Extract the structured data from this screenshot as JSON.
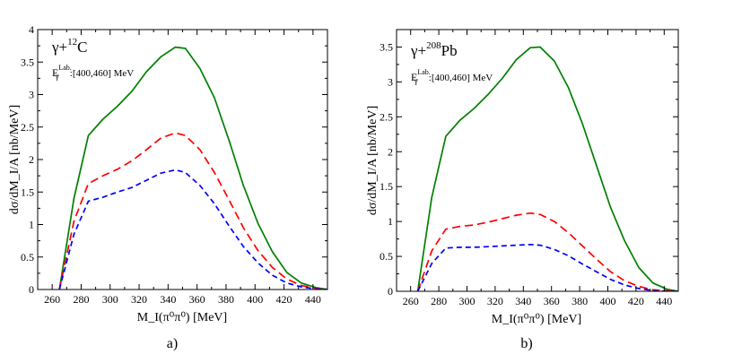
{
  "chart_data": [
    {
      "type": "line",
      "caption": "a)",
      "title_prefix": "γ+",
      "title_mass": "12",
      "title_element": "C",
      "energy_label": "E",
      "energy_sub": "γ",
      "energy_sup": "Lab.",
      "energy_range": ":[400,460] MeV",
      "xlabel": "M_I(π⁰π⁰) [MeV]",
      "ylabel": "dσ/dM_I/A  [nb/MeV]",
      "xlim": [
        250,
        450
      ],
      "ylim": [
        0,
        4
      ],
      "xticks": [
        260,
        280,
        300,
        320,
        340,
        360,
        380,
        400,
        420,
        440
      ],
      "yticks": [
        0,
        0.5,
        1,
        1.5,
        2,
        2.5,
        3,
        3.5,
        4
      ],
      "ytick_labels": [
        "0",
        "0.5",
        "1",
        "1.5",
        "2",
        "2.5",
        "3",
        "3.5",
        "4"
      ],
      "series": [
        {
          "name": "green solid",
          "color": "#008000",
          "dash": "solid",
          "x": [
            265,
            275,
            285,
            295,
            305,
            315,
            325,
            335,
            345,
            352,
            362,
            372,
            382,
            392,
            402,
            412,
            422,
            432,
            442,
            450
          ],
          "y": [
            0,
            1.4,
            2.37,
            2.62,
            2.82,
            3.05,
            3.35,
            3.58,
            3.73,
            3.71,
            3.4,
            2.95,
            2.3,
            1.6,
            1.02,
            0.58,
            0.26,
            0.1,
            0.03,
            0
          ]
        },
        {
          "name": "red long-dashed",
          "color": "#ff0000",
          "dash": "long",
          "x": [
            265,
            275,
            285,
            295,
            305,
            315,
            325,
            335,
            345,
            352,
            362,
            372,
            382,
            392,
            402,
            412,
            422,
            432,
            442,
            450
          ],
          "y": [
            0,
            1.05,
            1.63,
            1.75,
            1.85,
            1.98,
            2.15,
            2.33,
            2.41,
            2.37,
            2.15,
            1.8,
            1.38,
            0.95,
            0.6,
            0.34,
            0.16,
            0.06,
            0.02,
            0
          ]
        },
        {
          "name": "blue dashed",
          "color": "#0000ff",
          "dash": "short",
          "x": [
            265,
            275,
            285,
            295,
            305,
            315,
            325,
            335,
            345,
            352,
            362,
            372,
            382,
            392,
            402,
            412,
            422,
            432,
            442,
            450
          ],
          "y": [
            0,
            0.85,
            1.36,
            1.42,
            1.5,
            1.57,
            1.68,
            1.79,
            1.84,
            1.8,
            1.6,
            1.32,
            0.98,
            0.66,
            0.41,
            0.22,
            0.1,
            0.04,
            0.01,
            0
          ]
        }
      ]
    },
    {
      "type": "line",
      "caption": "b)",
      "title_prefix": "γ+",
      "title_mass": "208",
      "title_element": "Pb",
      "energy_label": "E",
      "energy_sub": "γ",
      "energy_sup": "Lab.",
      "energy_range": ":[400,460] MeV",
      "xlabel": "M_I(π⁰π⁰) [MeV]",
      "ylabel": "dσ/dM_I/A  [nb/MeV]",
      "xlim": [
        250,
        450
      ],
      "ylim": [
        0,
        3.75
      ],
      "xticks": [
        260,
        280,
        300,
        320,
        340,
        360,
        380,
        400,
        420,
        440
      ],
      "yticks": [
        0,
        0.5,
        1,
        1.5,
        2,
        2.5,
        3,
        3.5
      ],
      "ytick_labels": [
        "0",
        "0.5",
        "1",
        "1.5",
        "2",
        "2.5",
        "3",
        "3.5"
      ],
      "series": [
        {
          "name": "green solid",
          "color": "#008000",
          "dash": "solid",
          "x": [
            265,
            275,
            285,
            295,
            305,
            315,
            325,
            335,
            345,
            352,
            362,
            372,
            382,
            392,
            402,
            412,
            422,
            432,
            442,
            450
          ],
          "y": [
            0,
            1.35,
            2.22,
            2.45,
            2.62,
            2.82,
            3.05,
            3.32,
            3.49,
            3.5,
            3.3,
            2.92,
            2.4,
            1.8,
            1.2,
            0.72,
            0.34,
            0.12,
            0.03,
            0
          ]
        },
        {
          "name": "red long-dashed",
          "color": "#ff0000",
          "dash": "long",
          "x": [
            265,
            275,
            285,
            295,
            305,
            315,
            325,
            335,
            345,
            352,
            362,
            372,
            382,
            392,
            402,
            412,
            422,
            432,
            442,
            450
          ],
          "y": [
            0,
            0.58,
            0.89,
            0.93,
            0.95,
            0.99,
            1.04,
            1.09,
            1.12,
            1.1,
            1.0,
            0.84,
            0.65,
            0.46,
            0.28,
            0.15,
            0.07,
            0.02,
            0.01,
            0
          ]
        },
        {
          "name": "blue dashed",
          "color": "#0000ff",
          "dash": "short",
          "x": [
            265,
            275,
            285,
            295,
            305,
            315,
            325,
            335,
            345,
            352,
            362,
            372,
            382,
            392,
            402,
            412,
            422,
            432,
            442,
            450
          ],
          "y": [
            0,
            0.4,
            0.62,
            0.63,
            0.63,
            0.64,
            0.65,
            0.66,
            0.67,
            0.66,
            0.6,
            0.51,
            0.39,
            0.28,
            0.17,
            0.09,
            0.04,
            0.01,
            0,
            0
          ]
        }
      ]
    }
  ]
}
